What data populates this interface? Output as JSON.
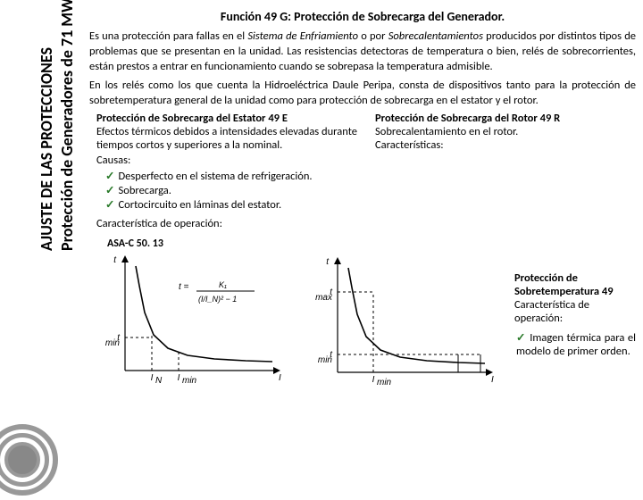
{
  "sidebar": {
    "line1": "AJUSTE DE LAS PROTECCIONES",
    "line2": "Protección de Generadores de 71 MW"
  },
  "heading": "Función 49 G: Protección de Sobrecarga del Generador.",
  "desc_html": "Es una protección para fallas en el <span class='italic'>Sistema de Enfriamiento</span> o por <span class='italic'>Sobrecalentamientos</span> producidos por distintos tipos de problemas que se presentan en la unidad. Las resistencias detectoras de temperatura o bien, relés de sobrecorrientes, están prestos a entrar en funcionamiento cuando se sobrepasa la temperatura admisible.",
  "desc2": "En los relés como los que cuenta la Hidroeléctrica Daule Peripa, consta de dispositivos tanto para la protección de sobretemperatura general de la unidad como para protección de sobrecarga en el estator y el rotor.",
  "left": {
    "title": "Protección de Sobrecarga del Estator 49 E",
    "body": "Efectos térmicos debidos a intensidades elevadas durante tiempos cortos y superiores a la nominal."
  },
  "right": {
    "title": "Protección de Sobrecarga del Rotor 49 R",
    "body": "Sobrecalentamiento en el rotor.",
    "char": "Características:"
  },
  "causas_label": "Causas:",
  "causas": [
    "Desperfecto en el sistema de refrigeración.",
    "Sobrecarga.",
    "Cortocircuito en láminas del estator."
  ],
  "op_char": "Característica de operación:",
  "chart1_label": "ASA-C 50. 13",
  "chart_style": {
    "axis_color": "#000000",
    "curve_color": "#000000",
    "dash_color": "#000000",
    "bg": "#ffffff",
    "axis_width": 1.2,
    "curve_width": 1.6,
    "dash_pattern": "3,3",
    "font_size_axis": 10,
    "font_size_formula": 10
  },
  "chart1": {
    "type": "line",
    "y_label": "t",
    "x_label": "I",
    "x_ticks": [
      "I_N",
      "I_min"
    ],
    "y_tick": "t_min",
    "formula": "t = K₁ / ((I/I_N)² − 1)",
    "curve_points": [
      [
        52,
        18
      ],
      [
        56,
        40
      ],
      [
        62,
        70
      ],
      [
        72,
        95
      ],
      [
        88,
        110
      ],
      [
        110,
        118
      ],
      [
        140,
        122
      ],
      [
        175,
        124
      ],
      [
        205,
        125
      ]
    ],
    "dash_v1_x": 70,
    "dash_v2_x": 100,
    "dash_h_y": 98,
    "xlim": [
      40,
      210
    ],
    "ylim": [
      10,
      135
    ]
  },
  "chart2": {
    "type": "line",
    "y_label": "t",
    "x_label": "I",
    "x_tick": "I_min",
    "y_ticks": [
      "t_max",
      "t_min"
    ],
    "curve_points": [
      [
        52,
        18
      ],
      [
        56,
        40
      ],
      [
        62,
        70
      ],
      [
        72,
        95
      ],
      [
        88,
        110
      ],
      [
        110,
        118
      ],
      [
        140,
        122
      ],
      [
        175,
        124
      ],
      [
        205,
        125
      ]
    ],
    "dash_v_x": 80,
    "dash_h1_y": 45,
    "dash_h2_y": 115,
    "cap_x1": 175,
    "cap_x2": 200,
    "xlim": [
      40,
      210
    ],
    "ylim": [
      10,
      135
    ]
  },
  "temp49": {
    "title": "Protección de Sobretemperatura 49",
    "char": "Característica de operación:",
    "bullet": "Imagen térmica para el modelo de primer orden."
  }
}
